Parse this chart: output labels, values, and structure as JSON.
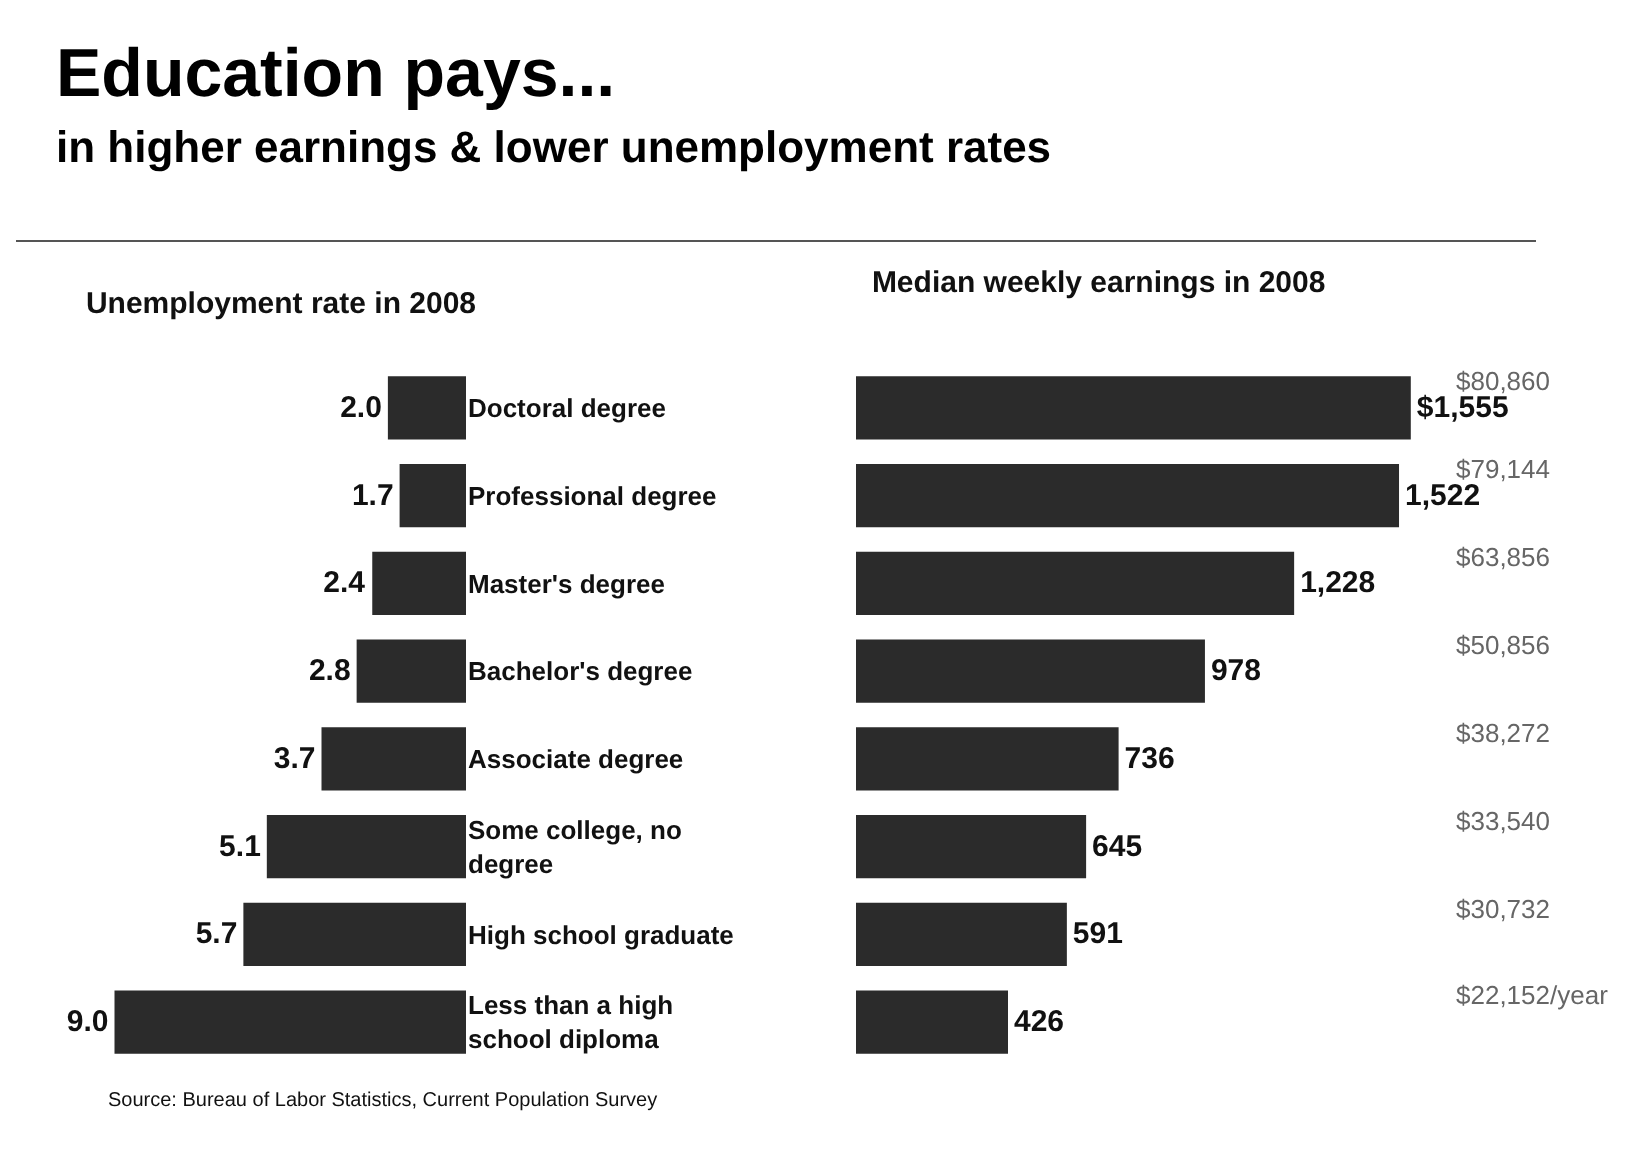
{
  "chart_data": [
    {
      "type": "bar",
      "orientation": "horizontal",
      "title": "Education pays...",
      "subtitle": "in higher earnings & lower unemployment rates",
      "xlabel": "Unemployment rate in 2008",
      "categories": [
        "Doctoral degree",
        "Professional degree",
        "Master's degree",
        "Bachelor's degree",
        "Associate degree",
        "Some college, no degree",
        "High school graduate",
        "Less than a high school diploma"
      ],
      "values": [
        2.0,
        1.7,
        2.4,
        2.8,
        3.7,
        5.1,
        5.7,
        9.0
      ],
      "value_labels": [
        "2.0",
        "1.7",
        "2.4",
        "2.8",
        "3.7",
        "5.1",
        "5.7",
        "9.0"
      ],
      "color": "#2b2b2b",
      "annotations": [
        "Source: Bureau of Labor Statistics, Current Population Survey"
      ]
    },
    {
      "type": "bar",
      "orientation": "horizontal",
      "title": "Median weekly earnings in 2008",
      "categories": [
        null,
        null,
        null,
        null,
        null,
        null,
        null,
        null
      ],
      "values": [
        1555,
        1522,
        1228,
        978,
        736,
        645,
        591,
        426
      ],
      "value_labels": [
        "$1,555",
        "1,522",
        "1,228",
        "978",
        "736",
        "645",
        "591",
        "426"
      ],
      "color": "#2b2b2b",
      "annotations": [
        "$80,860",
        "$79,144",
        "$63,856",
        "$50,856",
        "$38,272",
        "$33,540",
        "$30,732",
        "$22,152/year"
      ]
    }
  ]
}
